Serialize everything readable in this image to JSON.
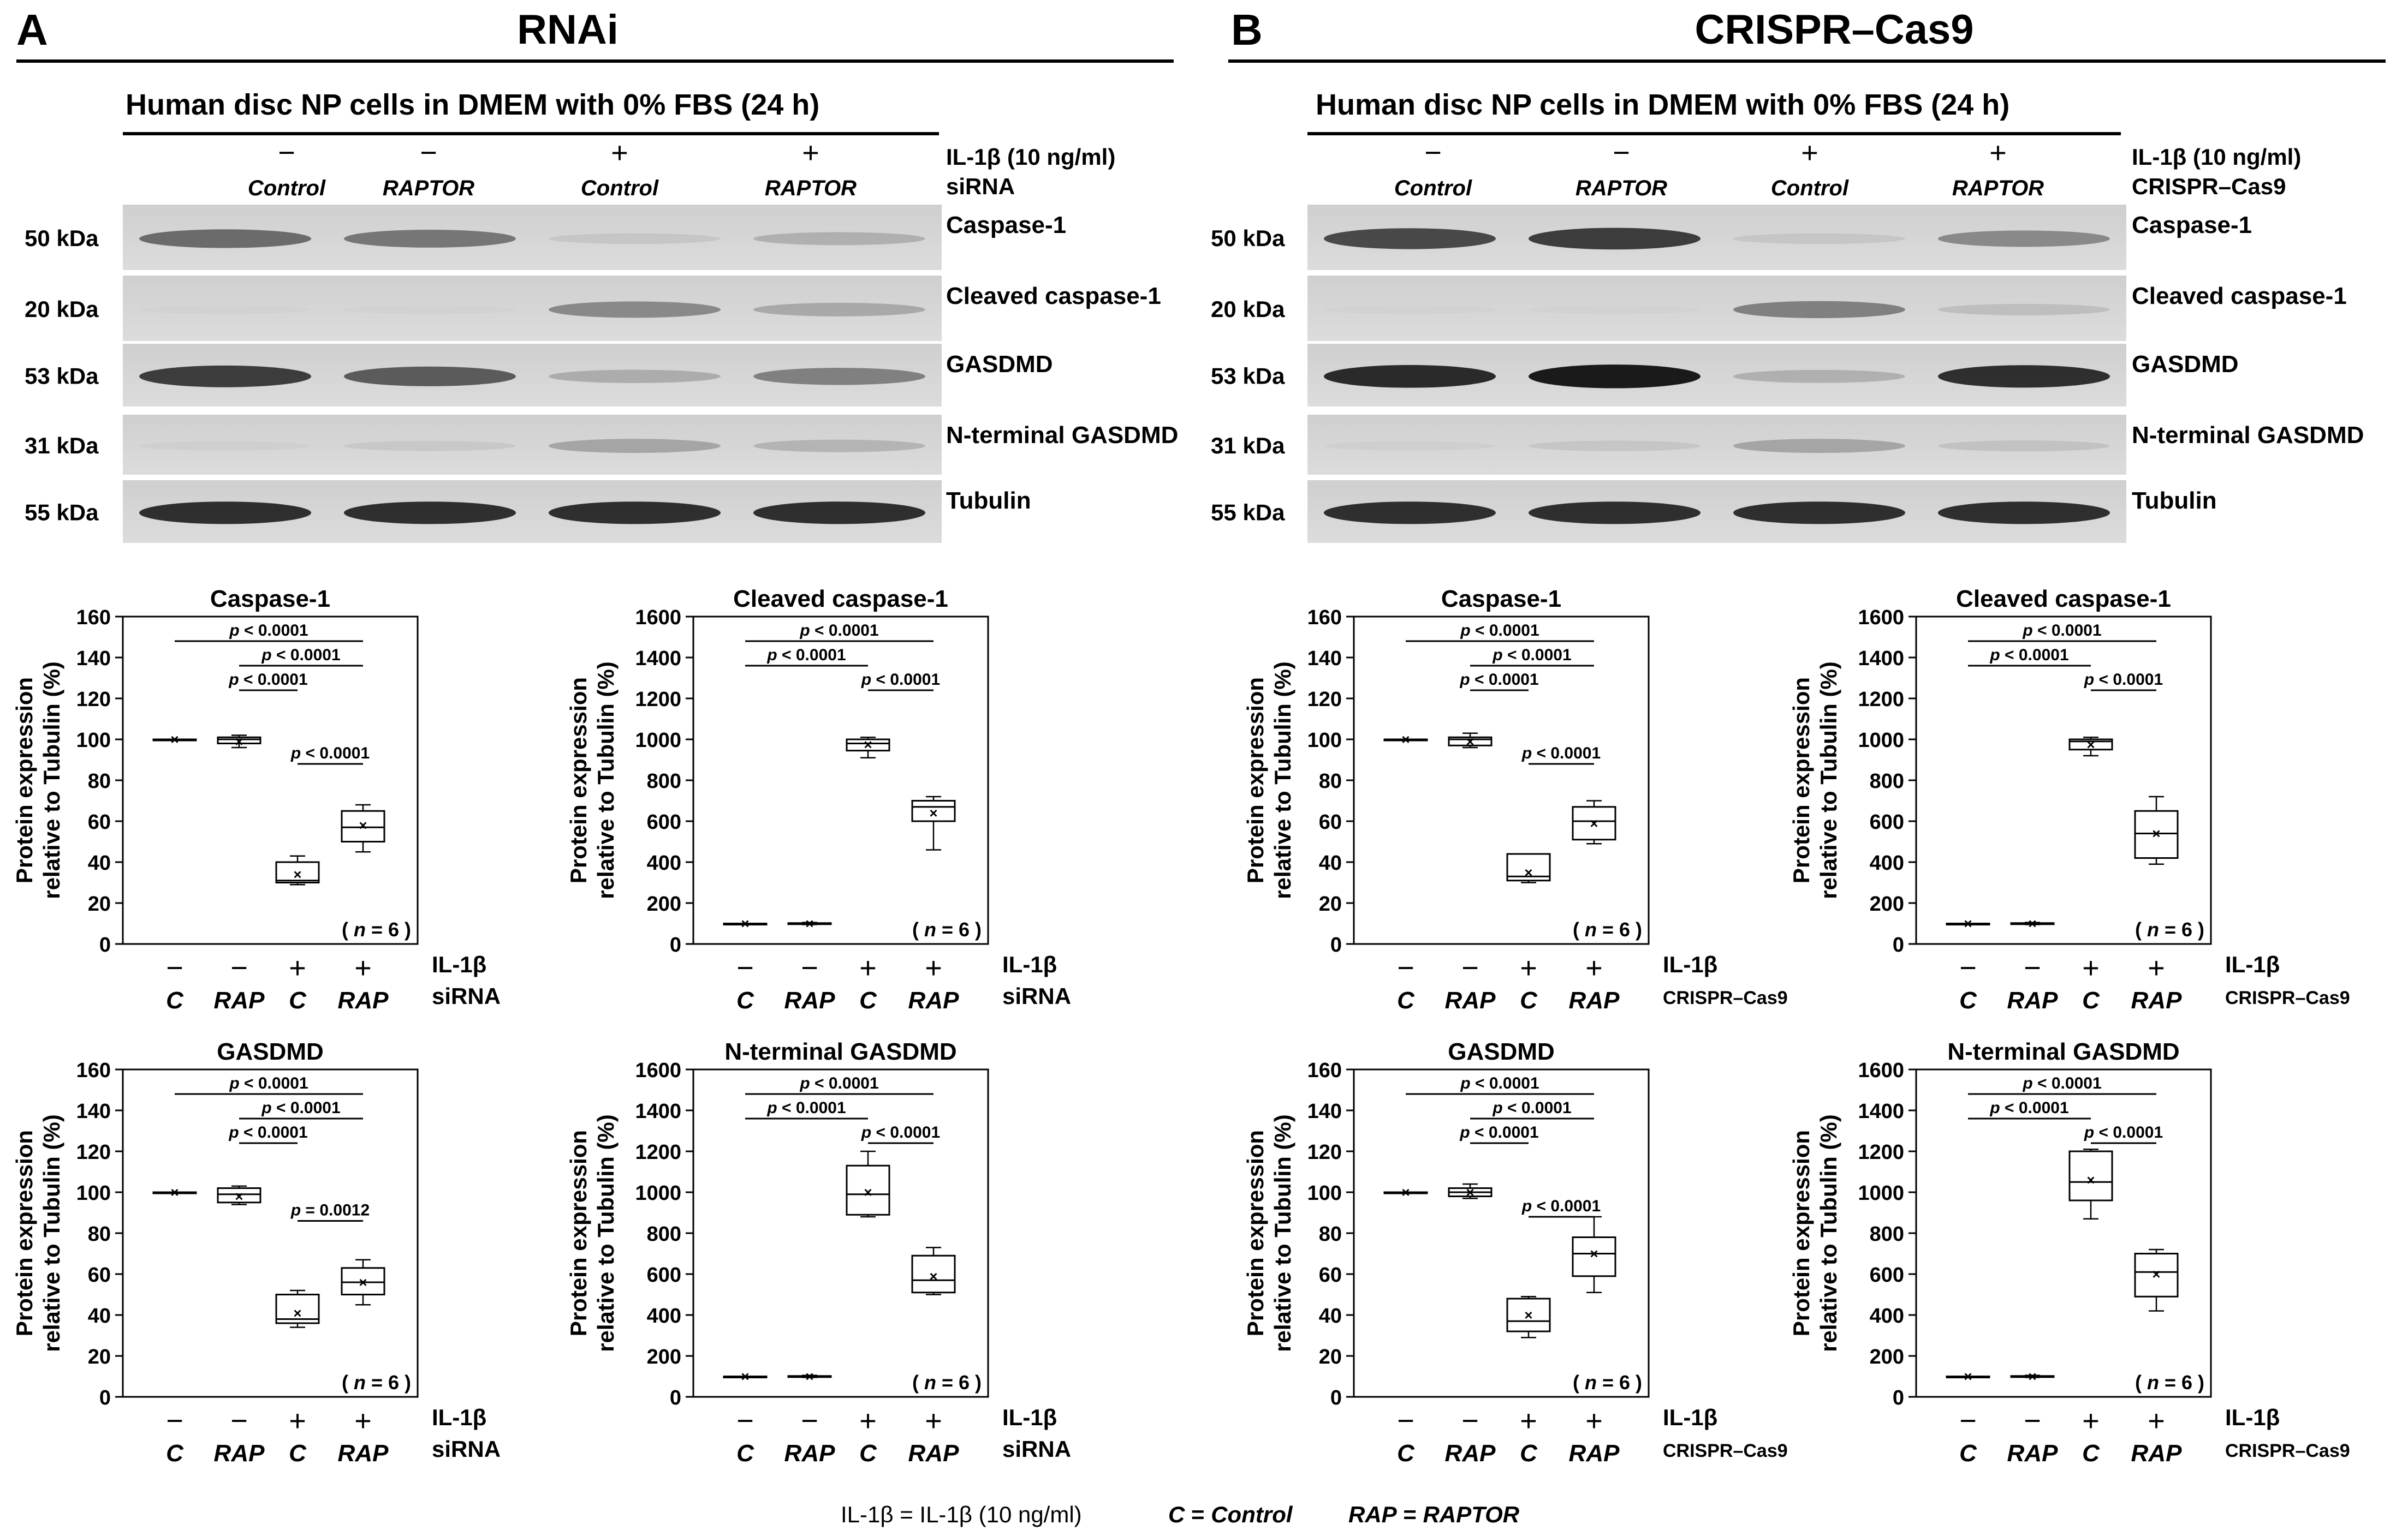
{
  "footer": {
    "il1b": "IL-1β = IL-1β (10 ng/ml)",
    "c": "C = Control",
    "rap": "RAP = RAPTOR"
  },
  "panels": [
    {
      "letter": "A",
      "title": "RNAi",
      "culture_header": "Human disc NP cells in DMEM with 0% FBS (24 h)",
      "treatment_label": "IL-1β (10 ng/ml)",
      "method_label": "siRNA",
      "lanes": [
        {
          "il1b": "−",
          "group": "Control"
        },
        {
          "il1b": "−",
          "group": "RAPTOR"
        },
        {
          "il1b": "+",
          "group": "Control"
        },
        {
          "il1b": "+",
          "group": "RAPTOR"
        }
      ],
      "blots": [
        {
          "kda": "50 kDa",
          "name": "Caspase-1",
          "band_intensity": [
            0.65,
            0.6,
            0.12,
            0.28
          ],
          "lane_count": 4
        },
        {
          "kda": "20 kDa",
          "name": "Cleaved caspase-1",
          "band_intensity": [
            0.02,
            0.02,
            0.5,
            0.32
          ],
          "lane_count": 4
        },
        {
          "kda": "53 kDa",
          "name": "GASDMD",
          "band_intensity": [
            0.85,
            0.72,
            0.3,
            0.55
          ],
          "lane_count": 4
        },
        {
          "kda": "31 kDa",
          "name": "N-terminal GASDMD",
          "band_intensity": [
            0.04,
            0.1,
            0.35,
            0.25
          ],
          "lane_count": 4
        },
        {
          "kda": "55 kDa",
          "name": "Tubulin",
          "band_intensity": [
            0.9,
            0.9,
            0.9,
            0.9
          ],
          "lane_count": 4
        }
      ],
      "charts_axis_label": [
        "Protein expression",
        "relative to Tubulin (%)"
      ],
      "charts_n_label": "( n = 6 )",
      "charts_x": {
        "il1b": [
          "−",
          "−",
          "+",
          "+"
        ],
        "group": [
          "C",
          "RAP",
          "C",
          "RAP"
        ],
        "row1": "IL-1β",
        "row2": "siRNA"
      }
    },
    {
      "letter": "B",
      "title": "CRISPR–Cas9",
      "culture_header": "Human disc NP cells in DMEM with 0% FBS (24 h)",
      "treatment_label": "IL-1β (10 ng/ml)",
      "method_label": "CRISPR–Cas9",
      "lanes": [
        {
          "il1b": "−",
          "group": "Control"
        },
        {
          "il1b": "−",
          "group": "RAPTOR"
        },
        {
          "il1b": "+",
          "group": "Control"
        },
        {
          "il1b": "+",
          "group": "RAPTOR"
        }
      ],
      "blots": [
        {
          "kda": "50 kDa",
          "name": "Caspase-1",
          "band_intensity": [
            0.8,
            0.85,
            0.12,
            0.5
          ],
          "lane_count": 4
        },
        {
          "kda": "20 kDa",
          "name": "Cleaved caspase-1",
          "band_intensity": [
            0.02,
            0.02,
            0.55,
            0.18
          ],
          "lane_count": 4
        },
        {
          "kda": "53 kDa",
          "name": "GASDMD",
          "band_intensity": [
            0.92,
            0.98,
            0.28,
            0.9
          ],
          "lane_count": 4
        },
        {
          "kda": "31 kDa",
          "name": "N-terminal GASDMD",
          "band_intensity": [
            0.04,
            0.12,
            0.35,
            0.15
          ],
          "lane_count": 4
        },
        {
          "kda": "55 kDa",
          "name": "Tubulin",
          "band_intensity": [
            0.9,
            0.9,
            0.9,
            0.9
          ],
          "lane_count": 4
        }
      ],
      "charts_axis_label": [
        "Protein expression",
        "relative to Tubulin (%)"
      ],
      "charts_n_label": "( n = 6 )",
      "charts_x": {
        "il1b": [
          "−",
          "−",
          "+",
          "+"
        ],
        "group": [
          "C",
          "RAP",
          "C",
          "RAP"
        ],
        "row1": "IL-1β",
        "row2": "CRISPR–Cas9"
      }
    }
  ],
  "chart_data": [
    {
      "type": "box",
      "panel": "A",
      "title": "Caspase-1",
      "ylim": [
        0,
        160
      ],
      "ticks": [
        0,
        20,
        40,
        60,
        80,
        100,
        120,
        140,
        160
      ],
      "categories": [
        "C",
        "RAP",
        "C",
        "RAP"
      ],
      "boxes": [
        {
          "min": 100,
          "q1": 100,
          "median": 100,
          "q3": 100,
          "max": 100,
          "mean": 100
        },
        {
          "min": 96,
          "q1": 98,
          "median": 100,
          "q3": 101,
          "max": 102,
          "mean": 99
        },
        {
          "min": 29,
          "q1": 30,
          "median": 31,
          "q3": 40,
          "max": 43,
          "mean": 34
        },
        {
          "min": 45,
          "q1": 50,
          "median": 57,
          "q3": 65,
          "max": 68,
          "mean": 58
        }
      ],
      "comparisons": [
        {
          "from": 0,
          "to": 3,
          "label": "p < 0.0001",
          "y": 148
        },
        {
          "from": 1,
          "to": 3,
          "label": "p < 0.0001",
          "y": 136
        },
        {
          "from": 1,
          "to": 2,
          "label": "p < 0.0001",
          "y": 124
        },
        {
          "from": 2,
          "to": 3,
          "label": "p < 0.0001",
          "y": 88
        }
      ]
    },
    {
      "type": "box",
      "panel": "A",
      "title": "Cleaved caspase-1",
      "ylim": [
        0,
        1600
      ],
      "ticks": [
        0,
        200,
        400,
        600,
        800,
        1000,
        1200,
        1400,
        1600
      ],
      "categories": [
        "C",
        "RAP",
        "C",
        "RAP"
      ],
      "boxes": [
        {
          "min": 100,
          "q1": 100,
          "median": 100,
          "q3": 100,
          "max": 100,
          "mean": 100
        },
        {
          "min": 95,
          "q1": 98,
          "median": 100,
          "q3": 102,
          "max": 105,
          "mean": 100
        },
        {
          "min": 910,
          "q1": 945,
          "median": 980,
          "q3": 1000,
          "max": 1010,
          "mean": 975
        },
        {
          "min": 460,
          "q1": 600,
          "median": 670,
          "q3": 700,
          "max": 720,
          "mean": 640
        }
      ],
      "comparisons": [
        {
          "from": 0,
          "to": 3,
          "label": "p < 0.0001",
          "y": 1480
        },
        {
          "from": 0,
          "to": 2,
          "label": "p < 0.0001",
          "y": 1360
        },
        {
          "from": 2,
          "to": 3,
          "label": "p < 0.0001",
          "y": 1240
        }
      ]
    },
    {
      "type": "box",
      "panel": "A",
      "title": "GASDMD",
      "ylim": [
        0,
        160
      ],
      "ticks": [
        0,
        20,
        40,
        60,
        80,
        100,
        120,
        140,
        160
      ],
      "categories": [
        "C",
        "RAP",
        "C",
        "RAP"
      ],
      "boxes": [
        {
          "min": 100,
          "q1": 100,
          "median": 100,
          "q3": 100,
          "max": 100,
          "mean": 100
        },
        {
          "min": 94,
          "q1": 95,
          "median": 99,
          "q3": 102,
          "max": 103,
          "mean": 98
        },
        {
          "min": 34,
          "q1": 36,
          "median": 38,
          "q3": 50,
          "max": 52,
          "mean": 41
        },
        {
          "min": 45,
          "q1": 50,
          "median": 56,
          "q3": 63,
          "max": 67,
          "mean": 56
        }
      ],
      "comparisons": [
        {
          "from": 0,
          "to": 3,
          "label": "p < 0.0001",
          "y": 148
        },
        {
          "from": 1,
          "to": 3,
          "label": "p < 0.0001",
          "y": 136
        },
        {
          "from": 1,
          "to": 2,
          "label": "p < 0.0001",
          "y": 124
        },
        {
          "from": 2,
          "to": 3,
          "label": "p = 0.0012",
          "y": 86
        }
      ]
    },
    {
      "type": "box",
      "panel": "A",
      "title": "N-terminal GASDMD",
      "ylim": [
        0,
        1600
      ],
      "ticks": [
        0,
        200,
        400,
        600,
        800,
        1000,
        1200,
        1400,
        1600
      ],
      "categories": [
        "C",
        "RAP",
        "C",
        "RAP"
      ],
      "boxes": [
        {
          "min": 100,
          "q1": 100,
          "median": 100,
          "q3": 100,
          "max": 100,
          "mean": 100
        },
        {
          "min": 95,
          "q1": 98,
          "median": 100,
          "q3": 102,
          "max": 105,
          "mean": 100
        },
        {
          "min": 880,
          "q1": 890,
          "median": 990,
          "q3": 1130,
          "max": 1200,
          "mean": 1000
        },
        {
          "min": 500,
          "q1": 510,
          "median": 570,
          "q3": 690,
          "max": 730,
          "mean": 590
        }
      ],
      "comparisons": [
        {
          "from": 0,
          "to": 3,
          "label": "p < 0.0001",
          "y": 1480
        },
        {
          "from": 0,
          "to": 2,
          "label": "p < 0.0001",
          "y": 1360
        },
        {
          "from": 2,
          "to": 3,
          "label": "p < 0.0001",
          "y": 1240
        }
      ]
    },
    {
      "type": "box",
      "panel": "B",
      "title": "Caspase-1",
      "ylim": [
        0,
        160
      ],
      "ticks": [
        0,
        20,
        40,
        60,
        80,
        100,
        120,
        140,
        160
      ],
      "categories": [
        "C",
        "RAP",
        "C",
        "RAP"
      ],
      "boxes": [
        {
          "min": 100,
          "q1": 100,
          "median": 100,
          "q3": 100,
          "max": 100,
          "mean": 100
        },
        {
          "min": 96,
          "q1": 97,
          "median": 100,
          "q3": 101,
          "max": 103,
          "mean": 99
        },
        {
          "min": 30,
          "q1": 31,
          "median": 33,
          "q3": 44,
          "max": 44,
          "mean": 35
        },
        {
          "min": 49,
          "q1": 51,
          "median": 60,
          "q3": 67,
          "max": 70,
          "mean": 59
        }
      ],
      "comparisons": [
        {
          "from": 0,
          "to": 3,
          "label": "p < 0.0001",
          "y": 148
        },
        {
          "from": 1,
          "to": 3,
          "label": "p < 0.0001",
          "y": 136
        },
        {
          "from": 1,
          "to": 2,
          "label": "p < 0.0001",
          "y": 124
        },
        {
          "from": 2,
          "to": 3,
          "label": "p < 0.0001",
          "y": 88
        }
      ]
    },
    {
      "type": "box",
      "panel": "B",
      "title": "Cleaved caspase-1",
      "ylim": [
        0,
        1600
      ],
      "ticks": [
        0,
        200,
        400,
        600,
        800,
        1000,
        1200,
        1400,
        1600
      ],
      "categories": [
        "C",
        "RAP",
        "C",
        "RAP"
      ],
      "boxes": [
        {
          "min": 100,
          "q1": 100,
          "median": 100,
          "q3": 100,
          "max": 100,
          "mean": 100
        },
        {
          "min": 95,
          "q1": 98,
          "median": 100,
          "q3": 102,
          "max": 105,
          "mean": 100
        },
        {
          "min": 920,
          "q1": 950,
          "median": 990,
          "q3": 1000,
          "max": 1010,
          "mean": 975
        },
        {
          "min": 390,
          "q1": 420,
          "median": 540,
          "q3": 650,
          "max": 720,
          "mean": 540
        }
      ],
      "comparisons": [
        {
          "from": 0,
          "to": 3,
          "label": "p < 0.0001",
          "y": 1480
        },
        {
          "from": 0,
          "to": 2,
          "label": "p < 0.0001",
          "y": 1360
        },
        {
          "from": 2,
          "to": 3,
          "label": "p < 0.0001",
          "y": 1240
        }
      ]
    },
    {
      "type": "box",
      "panel": "B",
      "title": "GASDMD",
      "ylim": [
        0,
        160
      ],
      "ticks": [
        0,
        20,
        40,
        60,
        80,
        100,
        120,
        140,
        160
      ],
      "categories": [
        "C",
        "RAP",
        "C",
        "RAP"
      ],
      "boxes": [
        {
          "min": 100,
          "q1": 100,
          "median": 100,
          "q3": 100,
          "max": 100,
          "mean": 100
        },
        {
          "min": 97,
          "q1": 98,
          "median": 100,
          "q3": 102,
          "max": 104,
          "mean": 100
        },
        {
          "min": 29,
          "q1": 32,
          "median": 37,
          "q3": 48,
          "max": 49,
          "mean": 40
        },
        {
          "min": 51,
          "q1": 59,
          "median": 70,
          "q3": 78,
          "max": 88,
          "mean": 70
        }
      ],
      "comparisons": [
        {
          "from": 0,
          "to": 3,
          "label": "p < 0.0001",
          "y": 148
        },
        {
          "from": 1,
          "to": 3,
          "label": "p < 0.0001",
          "y": 136
        },
        {
          "from": 1,
          "to": 2,
          "label": "p < 0.0001",
          "y": 124
        },
        {
          "from": 2,
          "to": 3,
          "label": "p < 0.0001",
          "y": 88
        }
      ]
    },
    {
      "type": "box",
      "panel": "B",
      "title": "N-terminal GASDMD",
      "ylim": [
        0,
        1600
      ],
      "ticks": [
        0,
        200,
        400,
        600,
        800,
        1000,
        1200,
        1400,
        1600
      ],
      "categories": [
        "C",
        "RAP",
        "C",
        "RAP"
      ],
      "boxes": [
        {
          "min": 100,
          "q1": 100,
          "median": 100,
          "q3": 100,
          "max": 100,
          "mean": 100
        },
        {
          "min": 95,
          "q1": 98,
          "median": 100,
          "q3": 102,
          "max": 105,
          "mean": 100
        },
        {
          "min": 870,
          "q1": 960,
          "median": 1050,
          "q3": 1200,
          "max": 1210,
          "mean": 1060
        },
        {
          "min": 420,
          "q1": 490,
          "median": 610,
          "q3": 700,
          "max": 720,
          "mean": 600
        }
      ],
      "comparisons": [
        {
          "from": 0,
          "to": 3,
          "label": "p < 0.0001",
          "y": 1480
        },
        {
          "from": 0,
          "to": 2,
          "label": "p < 0.0001",
          "y": 1360
        },
        {
          "from": 2,
          "to": 3,
          "label": "p < 0.0001",
          "y": 1240
        }
      ]
    }
  ]
}
